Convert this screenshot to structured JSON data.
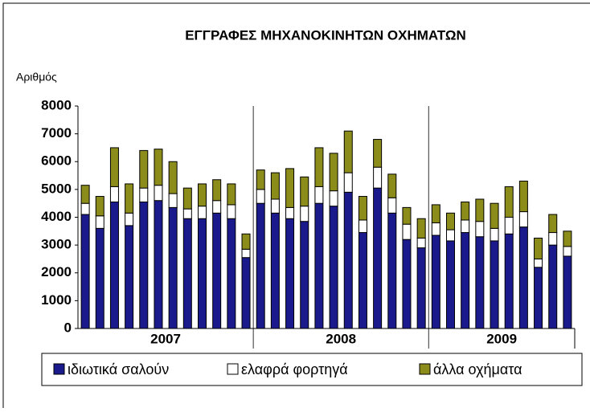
{
  "chart_data": {
    "type": "stacked_bar",
    "title": "ΕΓΓΡΑΦΕΣ ΜΗΧΑΝΟΚΙΝΗΤΩΝ ΟΧΗΜΑΤΩΝ",
    "y_label": "Αριθμός",
    "categories": [
      null,
      null,
      null,
      null,
      null,
      null,
      null,
      null,
      null,
      null,
      null,
      null,
      null,
      null,
      null,
      null,
      null,
      null,
      null,
      null,
      null,
      null,
      null,
      null,
      null,
      null,
      null,
      null,
      null,
      null,
      null,
      null,
      null,
      null
    ],
    "groups": [
      {
        "name": "2007",
        "size": 12
      },
      {
        "name": "2008",
        "size": 12
      },
      {
        "name": "2009",
        "size": 10
      }
    ],
    "series": [
      {
        "name": "ιδιωτικά σαλούν",
        "color": "#1a1a8c",
        "values": [
          4100,
          3600,
          4550,
          3700,
          4550,
          4600,
          4350,
          3950,
          3950,
          4150,
          3950,
          2550,
          4500,
          4150,
          3950,
          3850,
          4500,
          4400,
          4900,
          3450,
          5050,
          4150,
          3200,
          2900,
          3350,
          3150,
          3450,
          3300,
          3150,
          3400,
          3650,
          2200,
          3000,
          2600
        ]
      },
      {
        "name": "ελαφρά φορτηγά",
        "color": "#ffffff",
        "values": [
          400,
          450,
          550,
          450,
          500,
          550,
          500,
          350,
          450,
          450,
          500,
          300,
          500,
          500,
          400,
          550,
          600,
          550,
          700,
          450,
          750,
          550,
          550,
          350,
          450,
          400,
          450,
          550,
          450,
          600,
          550,
          300,
          450,
          350
        ]
      },
      {
        "name": "άλλα οχήματα",
        "color": "#8c8c1a",
        "values": [
          650,
          700,
          1400,
          1050,
          1350,
          1300,
          1150,
          750,
          800,
          750,
          750,
          550,
          700,
          950,
          1400,
          1050,
          1400,
          1350,
          1500,
          850,
          1000,
          850,
          600,
          700,
          650,
          600,
          650,
          800,
          900,
          1100,
          1100,
          750,
          650,
          550
        ]
      }
    ],
    "ylim": [
      0,
      8000
    ],
    "yticks": [
      0,
      1000,
      2000,
      3000,
      4000,
      5000,
      6000,
      7000,
      8000
    ],
    "legend": "bottom"
  }
}
